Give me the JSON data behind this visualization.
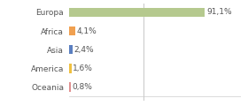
{
  "categories": [
    "Europa",
    "Africa",
    "Asia",
    "America",
    "Oceania"
  ],
  "values": [
    91.1,
    4.1,
    2.4,
    1.6,
    0.8
  ],
  "labels": [
    "91,1%",
    "4,1%",
    "2,4%",
    "1,6%",
    "0,8%"
  ],
  "bar_colors": [
    "#b5c98e",
    "#f0a050",
    "#5b7fc0",
    "#f0c040",
    "#e09090"
  ],
  "xlim": [
    0,
    115
  ],
  "background_color": "#ffffff",
  "label_fontsize": 6.5,
  "tick_fontsize": 6.5,
  "vline_x": 50,
  "bar_height": 0.5
}
